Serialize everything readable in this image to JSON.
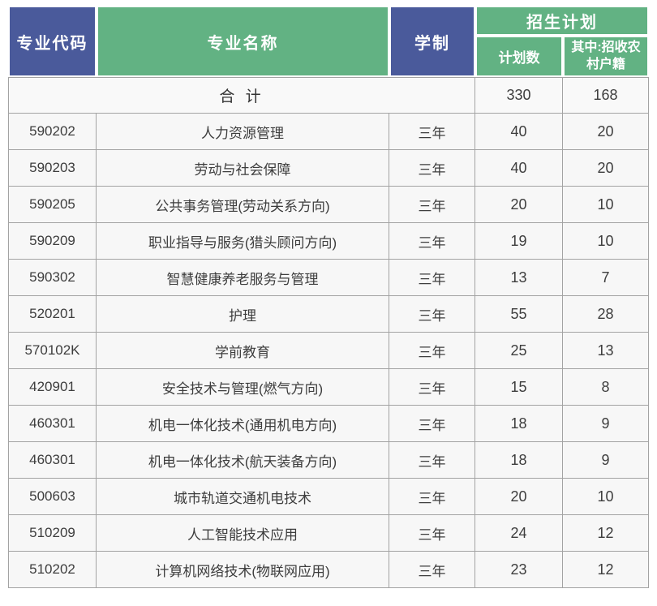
{
  "colors": {
    "header_blue": "#4a5a9b",
    "header_green": "#62b283",
    "row_bg": "#f7f7f7",
    "border_gray": "#a3a3a3"
  },
  "table": {
    "headers": {
      "major_code": "专业代码",
      "major_name": "专业名称",
      "duration": "学制",
      "enrollment_plan": "招生计划",
      "plan_count": "计划数",
      "rural_quota": "其中:招收农村户籍"
    },
    "total": {
      "label": "合 计",
      "plan": "330",
      "rural": "168"
    },
    "rows": [
      {
        "code": "590202",
        "name": "人力资源管理",
        "duration": "三年",
        "plan": "40",
        "rural": "20"
      },
      {
        "code": "590203",
        "name": "劳动与社会保障",
        "duration": "三年",
        "plan": "40",
        "rural": "20"
      },
      {
        "code": "590205",
        "name": "公共事务管理(劳动关系方向)",
        "duration": "三年",
        "plan": "20",
        "rural": "10"
      },
      {
        "code": "590209",
        "name": "职业指导与服务(猎头顾问方向)",
        "duration": "三年",
        "plan": "19",
        "rural": "10"
      },
      {
        "code": "590302",
        "name": "智慧健康养老服务与管理",
        "duration": "三年",
        "plan": "13",
        "rural": "7"
      },
      {
        "code": "520201",
        "name": "护理",
        "duration": "三年",
        "plan": "55",
        "rural": "28"
      },
      {
        "code": "570102K",
        "name": "学前教育",
        "duration": "三年",
        "plan": "25",
        "rural": "13"
      },
      {
        "code": "420901",
        "name": "安全技术与管理(燃气方向)",
        "duration": "三年",
        "plan": "15",
        "rural": "8"
      },
      {
        "code": "460301",
        "name": "机电一体化技术(通用机电方向)",
        "duration": "三年",
        "plan": "18",
        "rural": "9"
      },
      {
        "code": "460301",
        "name": "机电一体化技术(航天装备方向)",
        "duration": "三年",
        "plan": "18",
        "rural": "9"
      },
      {
        "code": "500603",
        "name": "城市轨道交通机电技术",
        "duration": "三年",
        "plan": "20",
        "rural": "10"
      },
      {
        "code": "510209",
        "name": "人工智能技术应用",
        "duration": "三年",
        "plan": "24",
        "rural": "12"
      },
      {
        "code": "510202",
        "name": "计算机网络技术(物联网应用)",
        "duration": "三年",
        "plan": "23",
        "rural": "12"
      }
    ]
  }
}
